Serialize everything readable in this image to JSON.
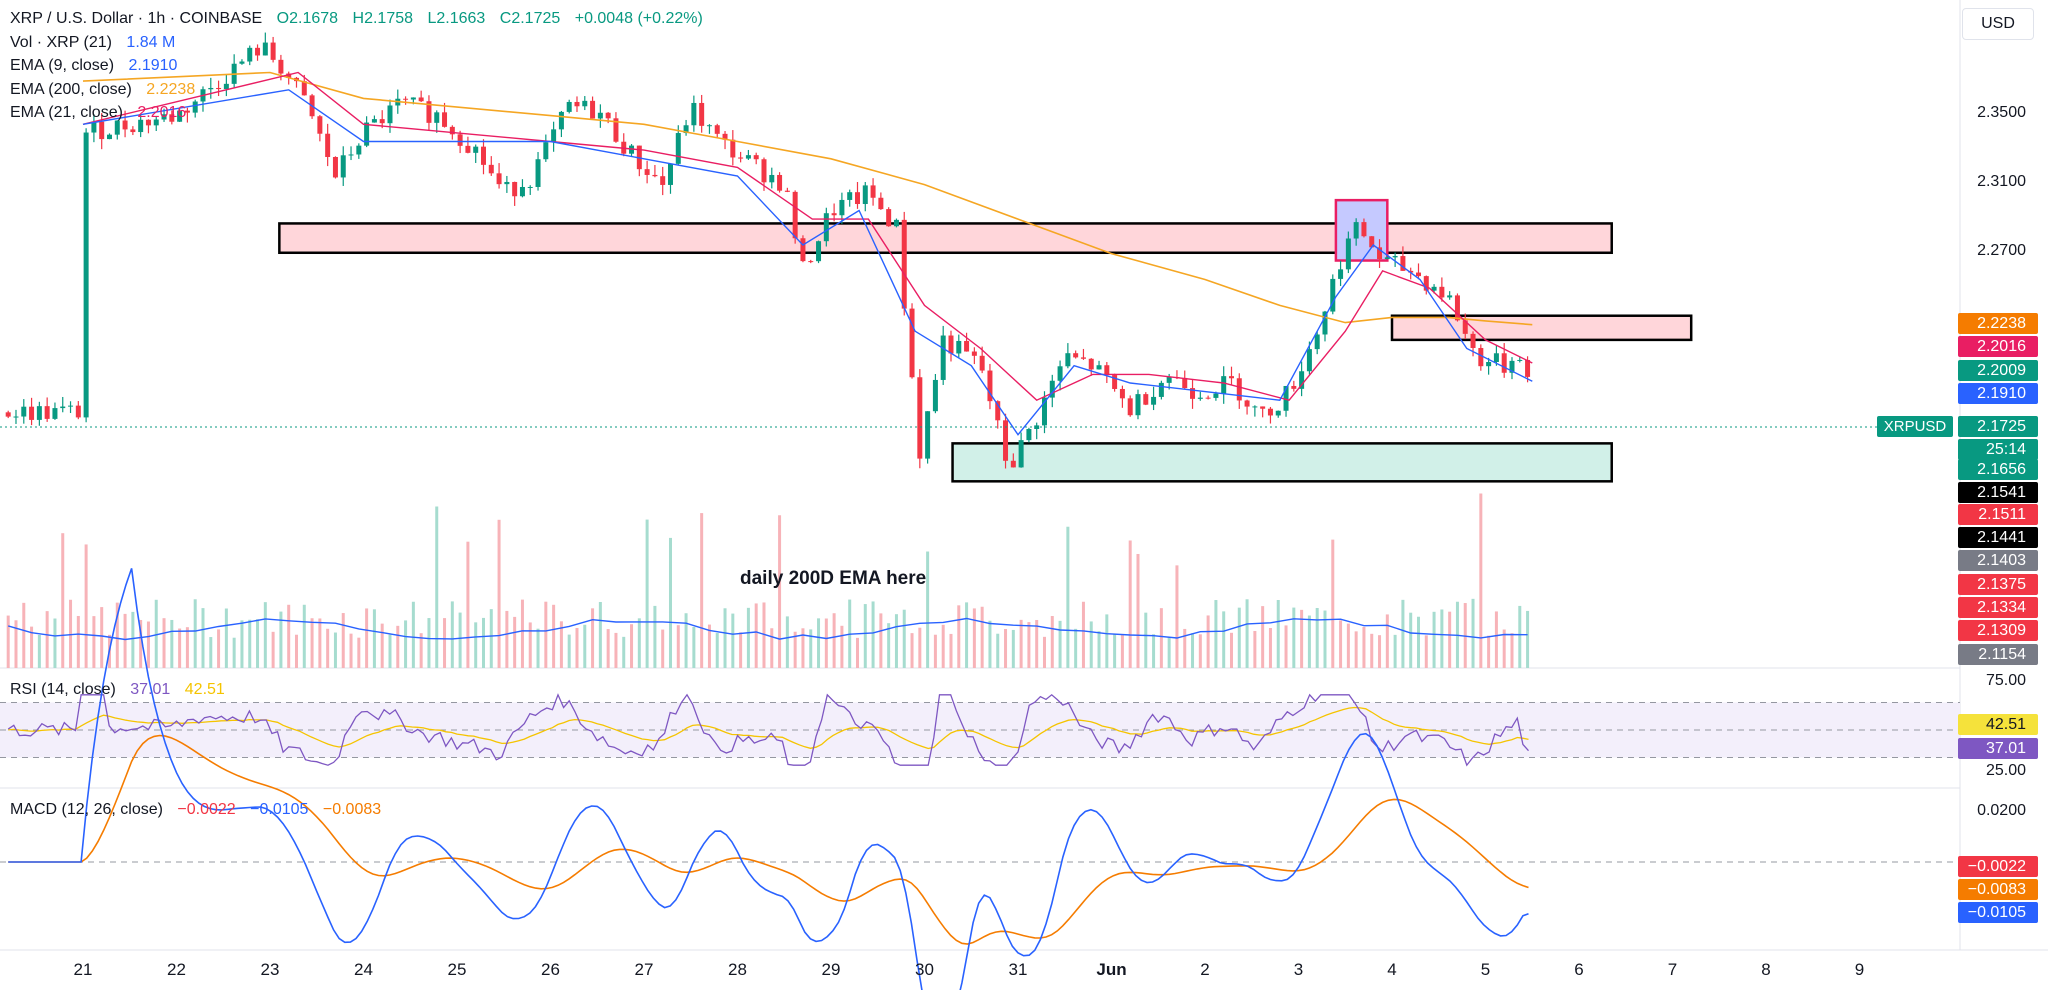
{
  "header": {
    "symbol_title": "XRP / U.S. Dollar · 1h · COINBASE",
    "ohlc": {
      "open": "O2.1678",
      "high": "H2.1758",
      "low": "L2.1663",
      "close": "C2.1725",
      "change": "+0.0048 (+0.22%)"
    },
    "indicators": [
      {
        "label": "Vol · XRP (21)",
        "value": "1.84 M",
        "color": "#2962ff"
      },
      {
        "label": "EMA (9, close)",
        "value": "2.1910",
        "color": "#2962ff"
      },
      {
        "label": "EMA (200, close)",
        "value": "2.2238",
        "color": "#f5a623"
      },
      {
        "label": "EMA (21, close)",
        "value": "2.2016",
        "color": "#e91e63"
      }
    ]
  },
  "currency_button": "USD",
  "price_axis": {
    "ticks": [
      "2.3500",
      "2.3100",
      "2.2700"
    ]
  },
  "price_tags": [
    {
      "value": "2.2238",
      "color": "#f57c00"
    },
    {
      "value": "2.2016",
      "color": "#e91e63"
    },
    {
      "value": "2.2009",
      "color": "#089981"
    },
    {
      "value": "2.1910",
      "color": "#2962ff"
    },
    {
      "value": "2.1725",
      "color": "#089981"
    },
    {
      "value": "25:14",
      "color": "#089981"
    },
    {
      "value": "2.1656",
      "color": "#089981"
    },
    {
      "value": "2.1541",
      "color": "#000000"
    },
    {
      "value": "2.1511",
      "color": "#f23645"
    },
    {
      "value": "2.1441",
      "color": "#000000"
    },
    {
      "value": "2.1403",
      "color": "#787b86"
    },
    {
      "value": "2.1375",
      "color": "#f23645"
    },
    {
      "value": "2.1334",
      "color": "#f23645"
    },
    {
      "value": "2.1309",
      "color": "#f23645"
    },
    {
      "value": "2.1154",
      "color": "#787b86"
    }
  ],
  "symbol_label": "XRPUSD",
  "annotation": "daily 200D EMA here",
  "rsi": {
    "label": "RSI (14, close)",
    "value": "37.01",
    "ma": "42.51",
    "upper": "75.00",
    "lower": "25.00"
  },
  "macd": {
    "label": "MACD (12, 26, close)",
    "hist": "−0.0022",
    "macd": "−0.0105",
    "signal": "−0.0083",
    "tick": "0.0200",
    "tags": [
      "−0.0022",
      "−0.0083",
      "−0.0105"
    ]
  },
  "colors": {
    "up": "#089981",
    "down": "#f23645",
    "ema9": "#2962ff",
    "ema21": "#e91e63",
    "ema200": "#f5a623",
    "rsi": "#7e57c2"
  },
  "chart_data": {
    "type": "candlestick",
    "x_ticks": [
      "21",
      "22",
      "23",
      "24",
      "25",
      "26",
      "27",
      "28",
      "29",
      "30",
      "31",
      "Jun",
      "2",
      "3",
      "4",
      "5",
      "6",
      "7",
      "8",
      "9"
    ],
    "price_points": [
      [
        21.0,
        2.335
      ],
      [
        22.0,
        2.345
      ],
      [
        22.9,
        2.385
      ],
      [
        23.1,
        2.375
      ],
      [
        23.4,
        2.35
      ],
      [
        23.7,
        2.31
      ],
      [
        24.0,
        2.335
      ],
      [
        24.4,
        2.352
      ],
      [
        24.8,
        2.345
      ],
      [
        25.2,
        2.325
      ],
      [
        25.5,
        2.3
      ],
      [
        25.8,
        2.31
      ],
      [
        26.2,
        2.35
      ],
      [
        26.5,
        2.348
      ],
      [
        26.9,
        2.32
      ],
      [
        27.2,
        2.305
      ],
      [
        27.5,
        2.35
      ],
      [
        27.8,
        2.33
      ],
      [
        28.2,
        2.315
      ],
      [
        28.5,
        2.305
      ],
      [
        28.7,
        2.255
      ],
      [
        29.0,
        2.29
      ],
      [
        29.4,
        2.3
      ],
      [
        29.7,
        2.28
      ],
      [
        29.95,
        2.15
      ],
      [
        30.2,
        2.215
      ],
      [
        30.6,
        2.2
      ],
      [
        30.9,
        2.14
      ],
      [
        31.2,
        2.17
      ],
      [
        31.5,
        2.205
      ],
      [
        31.8,
        2.2
      ],
      [
        32.2,
        2.175
      ],
      [
        32.6,
        2.195
      ],
      [
        32.9,
        2.185
      ],
      [
        33.3,
        2.19
      ],
      [
        33.6,
        2.17
      ],
      [
        33.9,
        2.185
      ],
      [
        34.2,
        2.22
      ],
      [
        34.5,
        2.27
      ],
      [
        34.65,
        2.28
      ],
      [
        34.9,
        2.26
      ],
      [
        35.2,
        2.255
      ],
      [
        35.6,
        2.24
      ],
      [
        35.9,
        2.205
      ],
      [
        36.2,
        2.2
      ],
      [
        36.4,
        2.21
      ],
      [
        36.5,
        2.173
      ]
    ],
    "ema9_points": [
      [
        21.0,
        2.34
      ],
      [
        23.2,
        2.36
      ],
      [
        24.0,
        2.33
      ],
      [
        25.0,
        2.33
      ],
      [
        26.0,
        2.33
      ],
      [
        27.0,
        2.32
      ],
      [
        28.0,
        2.31
      ],
      [
        28.7,
        2.27
      ],
      [
        29.3,
        2.29
      ],
      [
        29.9,
        2.22
      ],
      [
        30.5,
        2.2
      ],
      [
        31.0,
        2.16
      ],
      [
        31.6,
        2.2
      ],
      [
        32.2,
        2.19
      ],
      [
        33.0,
        2.185
      ],
      [
        33.8,
        2.18
      ],
      [
        34.4,
        2.24
      ],
      [
        34.8,
        2.27
      ],
      [
        35.3,
        2.25
      ],
      [
        35.8,
        2.21
      ],
      [
        36.5,
        2.191
      ]
    ],
    "ema21_points": [
      [
        21.0,
        2.34
      ],
      [
        23.3,
        2.37
      ],
      [
        24.0,
        2.34
      ],
      [
        25.0,
        2.335
      ],
      [
        26.0,
        2.33
      ],
      [
        27.0,
        2.325
      ],
      [
        28.0,
        2.315
      ],
      [
        28.8,
        2.285
      ],
      [
        29.4,
        2.285
      ],
      [
        30.0,
        2.235
      ],
      [
        30.6,
        2.21
      ],
      [
        31.2,
        2.18
      ],
      [
        31.8,
        2.195
      ],
      [
        32.4,
        2.195
      ],
      [
        33.2,
        2.19
      ],
      [
        33.9,
        2.18
      ],
      [
        34.5,
        2.22
      ],
      [
        34.9,
        2.255
      ],
      [
        35.4,
        2.245
      ],
      [
        36.0,
        2.215
      ],
      [
        36.5,
        2.2016
      ]
    ],
    "ema200_points": [
      [
        21.0,
        2.365
      ],
      [
        23.0,
        2.37
      ],
      [
        24.0,
        2.355
      ],
      [
        26.0,
        2.345
      ],
      [
        27.0,
        2.34
      ],
      [
        28.0,
        2.33
      ],
      [
        29.0,
        2.32
      ],
      [
        30.0,
        2.305
      ],
      [
        31.0,
        2.285
      ],
      [
        32.0,
        2.265
      ],
      [
        33.0,
        2.25
      ],
      [
        33.8,
        2.235
      ],
      [
        34.5,
        2.225
      ],
      [
        35.0,
        2.228
      ],
      [
        35.6,
        2.228
      ],
      [
        36.0,
        2.226
      ],
      [
        36.5,
        2.2238
      ]
    ],
    "zones": [
      {
        "x0": 23.1,
        "x1": 37.35,
        "y0": 2.2655,
        "y1": 2.2825,
        "fill": "#ffd6da"
      },
      {
        "x0": 34.4,
        "x1": 34.95,
        "y0": 2.261,
        "y1": 2.296,
        "fill": "#c5c9ff"
      },
      {
        "x0": 35.0,
        "x1": 38.2,
        "y0": 2.215,
        "y1": 2.229,
        "fill": "#ffd6da"
      },
      {
        "x0": 30.3,
        "x1": 37.35,
        "y0": 2.133,
        "y1": 2.155,
        "fill": "#d1f0e8"
      }
    ],
    "rsi_range": [
      0,
      100
    ],
    "macd_range": [
      -0.045,
      0.03
    ]
  }
}
